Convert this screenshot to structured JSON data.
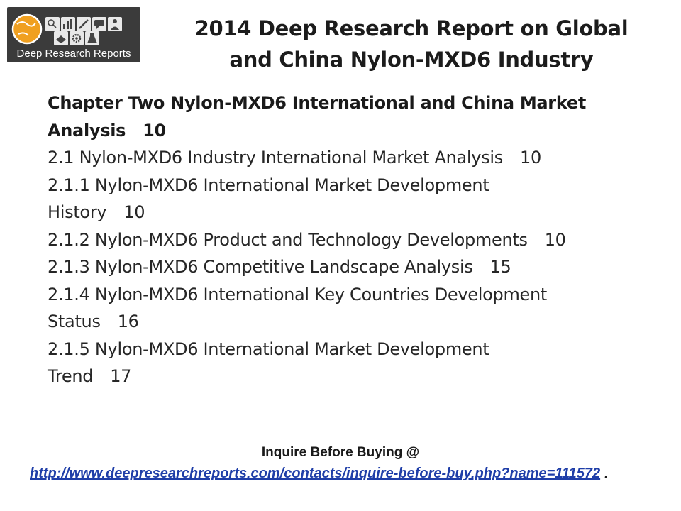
{
  "logo": {
    "text": "Deep Research Reports",
    "icons": [
      "globe-icon",
      "search-icon",
      "chart-icon",
      "handshake-icon",
      "gear-icon",
      "pen-icon",
      "flask-icon"
    ]
  },
  "title": {
    "line1": "2014 Deep Research Report on Global",
    "line2": "and China Nylon-MXD6 Industry"
  },
  "toc": {
    "chapter": {
      "line1": "Chapter Two Nylon-MXD6 International and China Market",
      "line2": "Analysis",
      "page": "10"
    },
    "items": [
      {
        "text": "2.1 Nylon-MXD6 Industry International Market Analysis",
        "page": "10"
      },
      {
        "line1": "2.1.1 Nylon-MXD6 International Market Development",
        "line2": "History",
        "page": "10"
      },
      {
        "text": "2.1.2 Nylon-MXD6 Product and Technology Developments",
        "page": "10"
      },
      {
        "text": "2.1.3 Nylon-MXD6 Competitive Landscape Analysis",
        "page": "15"
      },
      {
        "line1": "2.1.4 Nylon-MXD6 International Key Countries Development",
        "line2": "Status",
        "page": "16"
      },
      {
        "line1": "2.1.5 Nylon-MXD6 International Market Development",
        "line2": "Trend",
        "page": "17"
      }
    ]
  },
  "footer": {
    "inquire": "Inquire Before Buying @",
    "url": "http://www.deepresearchreports.com/contacts/inquire-before-buy.php?name=111572",
    "trailing": "."
  },
  "colors": {
    "logo_bg": "#3b3b3b",
    "link": "#1f3ea8",
    "text": "#262626"
  }
}
